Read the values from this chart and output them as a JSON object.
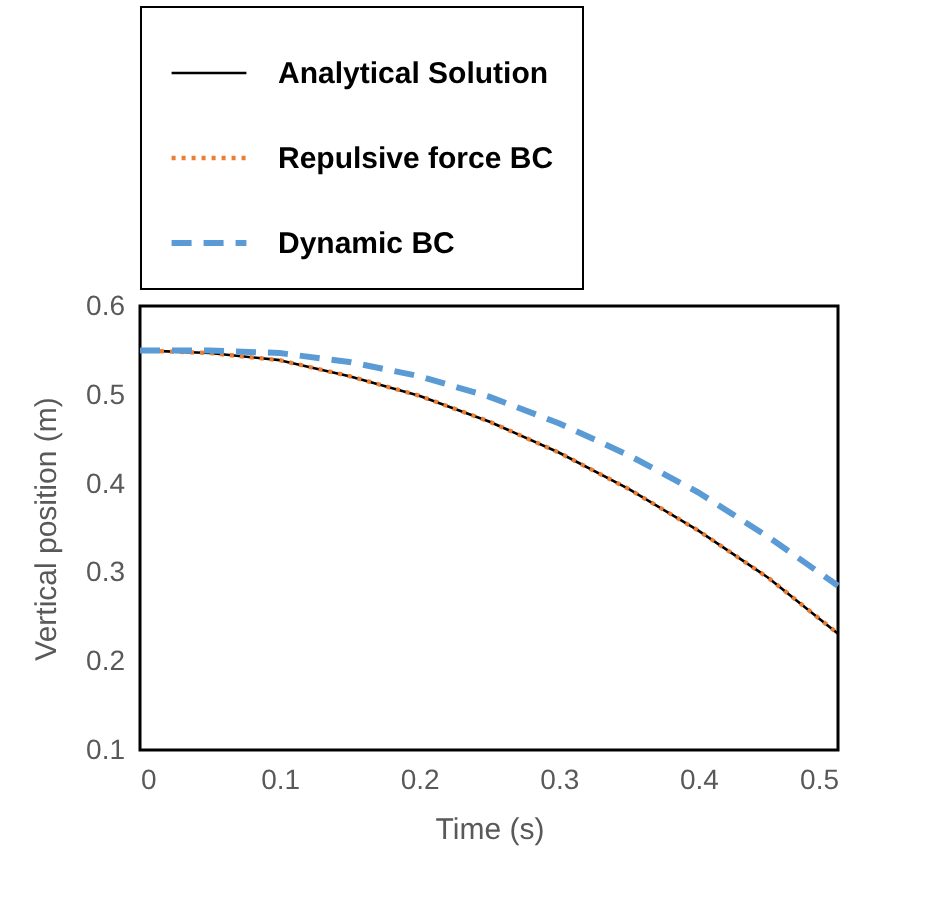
{
  "chart_data": {
    "type": "line",
    "xlabel": "Time (s)",
    "ylabel": "Vertical position (m)",
    "x": [
      0,
      0.05,
      0.1,
      0.15,
      0.2,
      0.25,
      0.3,
      0.35,
      0.4,
      0.45,
      0.5
    ],
    "series": [
      {
        "name": "Analytical Solution",
        "color": "#000000",
        "line_style": "solid",
        "values": [
          0.55,
          0.547,
          0.539,
          0.521,
          0.499,
          0.47,
          0.435,
          0.394,
          0.347,
          0.294,
          0.231
        ]
      },
      {
        "name": "Repulsive force BC",
        "color": "#ed7d31",
        "line_style": "dotted",
        "values": [
          0.55,
          0.547,
          0.539,
          0.521,
          0.499,
          0.47,
          0.435,
          0.394,
          0.347,
          0.294,
          0.231
        ]
      },
      {
        "name": "Dynamic BC",
        "color": "#5b9bd5",
        "line_style": "dashed",
        "values": [
          0.55,
          0.55,
          0.547,
          0.537,
          0.521,
          0.498,
          0.468,
          0.432,
          0.39,
          0.34,
          0.285
        ]
      }
    ],
    "xlim": [
      0,
      0.5
    ],
    "xticks": [
      0,
      0.1,
      0.2,
      0.3,
      0.4,
      0.5
    ],
    "ylim": [
      0.1,
      0.6
    ],
    "yticks": [
      0.1,
      0.2,
      0.3,
      0.4,
      0.5,
      0.6
    ],
    "grid": false,
    "legend": "top"
  }
}
